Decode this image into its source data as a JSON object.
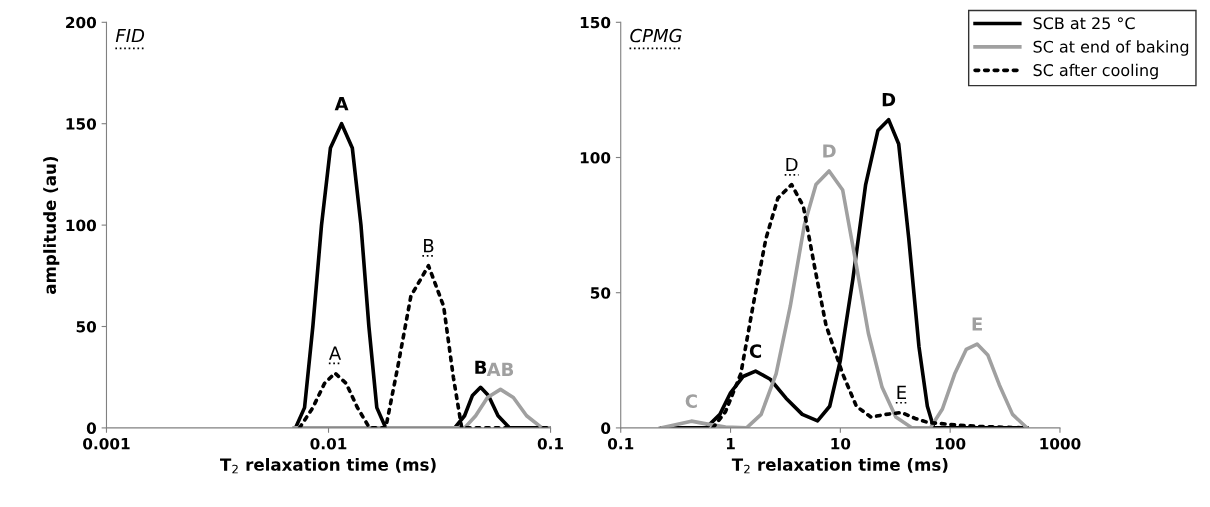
{
  "chart_data": [
    {
      "type": "line",
      "title": "FID",
      "xlabel": "T$_{2}$ relaxation time (ms)",
      "ylabel": "amplitude (au)",
      "log": "x",
      "xlim": [
        0.001,
        0.1
      ],
      "xticks": [
        0.001,
        0.01,
        0.1
      ],
      "ylim": [
        0,
        200
      ],
      "yticks": [
        0,
        50,
        100,
        150,
        200
      ],
      "grid": false,
      "legend": false,
      "marker": "none",
      "annotations": [
        {
          "text": "A",
          "x": 0.01145,
          "y": 150
        },
        {
          "text": "A",
          "x": 0.0107,
          "y": 27
        },
        {
          "text": "B",
          "x": 0.0282,
          "y": 80
        },
        {
          "text": "B",
          "x": 0.0484,
          "y": 20
        },
        {
          "text": "AB",
          "x": 0.0595,
          "y": 19
        }
      ],
      "series": [
        {
          "color": "#000000",
          "line_style": "solid",
          "x": [
            0.0071,
            0.0078,
            0.0085,
            0.0093,
            0.0102,
            0.01145,
            0.0128,
            0.014,
            0.0152,
            0.0165,
            0.0181,
            0.037,
            0.041,
            0.0445,
            0.0484,
            0.0525,
            0.058,
            0.0654,
            0.1
          ],
          "values": [
            0,
            10,
            50,
            100,
            138,
            150,
            138,
            100,
            50,
            10,
            0,
            0,
            6,
            16,
            20,
            16,
            6,
            0,
            0
          ]
        },
        {
          "color": "#a0a0a0",
          "line_style": "solid",
          "x": [
            0.007,
            0.041,
            0.046,
            0.052,
            0.0595,
            0.068,
            0.078,
            0.0915,
            0.1
          ],
          "values": [
            0,
            0,
            6,
            15,
            19,
            15,
            6,
            0,
            0
          ]
        },
        {
          "color": "#000000",
          "line_style": "dotted",
          "x": [
            0.0074,
            0.0085,
            0.0096,
            0.0107,
            0.012,
            0.0135,
            0.0153,
            0.0181,
            0.0205,
            0.0235,
            0.0282,
            0.033,
            0.0365,
            0.0398,
            0.1
          ],
          "values": [
            0,
            10,
            22,
            27,
            22,
            10,
            0,
            0,
            30,
            65,
            80,
            60,
            25,
            0,
            0
          ]
        }
      ]
    },
    {
      "type": "line",
      "title": "CPMG",
      "xlabel": "T$_{2}$ relaxation time (ms)",
      "log": "x",
      "xlim": [
        0.1,
        1000
      ],
      "xticks": [
        0.1,
        1,
        10,
        100,
        1000
      ],
      "ylim": [
        0,
        150
      ],
      "yticks": [
        0,
        50,
        100,
        150
      ],
      "grid": false,
      "legend": "top right",
      "marker": "none",
      "annotations": [
        {
          "text": "C",
          "x": 0.44,
          "y": 2.5
        },
        {
          "text": "C",
          "x": 1.69,
          "y": 21
        },
        {
          "text": "D",
          "x": 3.6,
          "y": 90
        },
        {
          "text": "D",
          "x": 7.9,
          "y": 95
        },
        {
          "text": "D",
          "x": 27.5,
          "y": 114
        },
        {
          "text": "E",
          "x": 36,
          "y": 5.7
        },
        {
          "text": "E",
          "x": 176,
          "y": 31
        }
      ],
      "series": [
        {
          "name": "SCB at 25 °C",
          "color": "#000000",
          "line_style": "solid",
          "x": [
            0.236,
            0.6,
            0.8,
            1.0,
            1.3,
            1.69,
            2.3,
            3.2,
            4.5,
            6.2,
            8,
            10,
            13,
            17,
            22,
            27.5,
            34,
            42,
            52,
            62,
            71,
            500
          ],
          "values": [
            0,
            0,
            5,
            13,
            19,
            21,
            18,
            11,
            5,
            2.6,
            8,
            25,
            55,
            90,
            110,
            114,
            105,
            70,
            30,
            8,
            0,
            0
          ]
        },
        {
          "name": "SC at end of baking",
          "color": "#a0a0a0",
          "line_style": "solid",
          "x": [
            0.23,
            0.3,
            0.44,
            0.6,
            0.9,
            1.4,
            1.9,
            2.6,
            3.5,
            4.7,
            6,
            7.9,
            10.5,
            14,
            18,
            24,
            32,
            45,
            66,
            85,
            110,
            140,
            176,
            220,
            280,
            370,
            500
          ],
          "values": [
            0,
            1,
            2.5,
            1.5,
            0.3,
            0,
            5,
            20,
            45,
            75,
            90,
            95,
            88,
            60,
            35,
            15,
            4,
            0,
            0,
            7,
            20,
            29,
            31,
            27,
            16,
            5,
            0
          ]
        },
        {
          "name": "SC after cooling",
          "color": "#000000",
          "line_style": "dotted",
          "x": [
            0.69,
            0.9,
            1.24,
            1.6,
            2.1,
            2.7,
            3.6,
            4.6,
            5.8,
            7.4,
            10.5,
            14,
            19,
            26,
            36,
            48,
            63,
            120,
            190,
            500
          ],
          "values": [
            0,
            6,
            20,
            45,
            70,
            85,
            90,
            82,
            60,
            38,
            20,
            8,
            4,
            5,
            5.7,
            3.5,
            2,
            1,
            0.5,
            0
          ]
        }
      ]
    }
  ]
}
